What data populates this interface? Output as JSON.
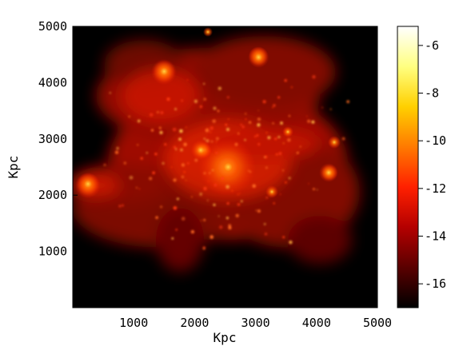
{
  "chart_data": {
    "type": "heatmap",
    "title": "",
    "xlabel": "Kpc",
    "ylabel": "Kpc",
    "xlim": [
      0,
      5000
    ],
    "ylim": [
      0,
      5000
    ],
    "x_ticks": [
      1000,
      2000,
      3000,
      4000,
      5000
    ],
    "y_ticks": [
      1000,
      2000,
      3000,
      4000,
      5000
    ],
    "x_tick_labels": [
      "1000",
      "2000",
      "3000",
      "4000",
      "5000"
    ],
    "y_tick_labels": [
      "1000",
      "2000",
      "3000",
      "4000",
      "5000"
    ],
    "colorbar": {
      "range": [
        -17,
        -5.2
      ],
      "ticks": [
        -6,
        -8,
        -10,
        -12,
        -14,
        -16
      ],
      "tick_labels": [
        "-6",
        "-8",
        "-10",
        "-12",
        "-14",
        "-16"
      ],
      "colors": [
        "#000000",
        "#5a0000",
        "#b40000",
        "#ff2000",
        "#ff7a00",
        "#ffd000",
        "#ffff80",
        "#ffffff"
      ]
    },
    "bright_spots": [
      {
        "x": 2550,
        "y": 2500,
        "value": -9.5
      },
      {
        "x": 250,
        "y": 2200,
        "value": -10.5
      },
      {
        "x": 1500,
        "y": 4200,
        "value": -10.5
      },
      {
        "x": 3050,
        "y": 4450,
        "value": -11
      },
      {
        "x": 2100,
        "y": 2800,
        "value": -11.5
      },
      {
        "x": 4200,
        "y": 2400,
        "value": -12
      }
    ],
    "grid": false,
    "legend": "colorbar-right"
  }
}
